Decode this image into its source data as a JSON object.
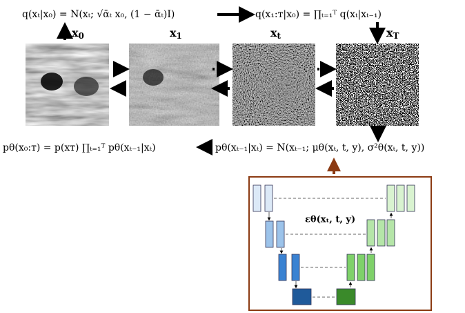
{
  "top": {
    "forward_step": "q(xₜ|x₀) = N(xₜ; √ᾱₜ x₀, (1 − ᾱₜ)I)",
    "forward_joint": "q(x₁:ᴛ|x₀) = ∏ₜ₌₁ᵀ q(xₜ|xₜ₋₁)"
  },
  "labels": [
    {
      "symbol": "x",
      "sub": "0"
    },
    {
      "symbol": "x",
      "sub": "1"
    },
    {
      "symbol": "x",
      "sub": "t"
    },
    {
      "symbol": "x",
      "sub": "T"
    }
  ],
  "bottom": {
    "joint": "pθ(x₀:ᴛ) = p(xᴛ) ∏ₜ₌₁ᵀ pθ(xₜ₋₁|xₜ)",
    "reverse_step": "pθ(xₜ₋₁|xₜ) = N(xₜ₋₁; μθ(xₜ, t, y), σ²θ(xₜ, t, y))"
  },
  "unet": {
    "label": "εθ(xₜ, t, y)"
  }
}
